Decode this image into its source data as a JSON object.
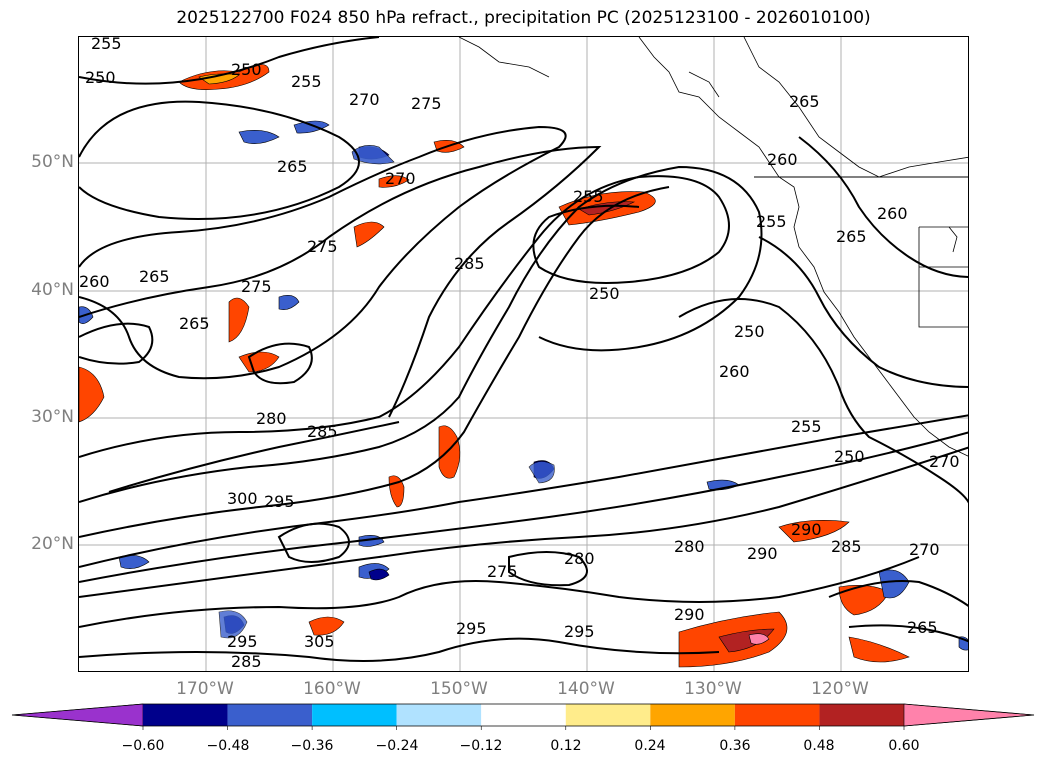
{
  "title": "2025122700 F024 850 hPa refract., precipitation PC (2025123100 - 2026010100)",
  "latitude_labels": [
    "50°N",
    "40°N",
    "30°N",
    "20°N"
  ],
  "longitude_labels": [
    "170°W",
    "160°W",
    "150°W",
    "140°W",
    "130°W",
    "120°W"
  ],
  "contour_labels": [
    {
      "text": "255"
    },
    {
      "text": "250"
    },
    {
      "text": "250"
    },
    {
      "text": "255"
    },
    {
      "text": "270"
    },
    {
      "text": "275"
    },
    {
      "text": "275"
    },
    {
      "text": "265"
    },
    {
      "text": "270"
    },
    {
      "text": "265"
    },
    {
      "text": "260"
    },
    {
      "text": "275"
    },
    {
      "text": "285"
    },
    {
      "text": "255"
    },
    {
      "text": "250"
    },
    {
      "text": "265"
    },
    {
      "text": "260"
    },
    {
      "text": "255"
    },
    {
      "text": "265"
    },
    {
      "text": "260"
    },
    {
      "text": "265"
    },
    {
      "text": "250"
    },
    {
      "text": "260"
    },
    {
      "text": "280"
    },
    {
      "text": "285"
    },
    {
      "text": "295"
    },
    {
      "text": "300"
    },
    {
      "text": "280"
    },
    {
      "text": "275"
    },
    {
      "text": "295"
    },
    {
      "text": "290"
    },
    {
      "text": "295"
    },
    {
      "text": "305"
    },
    {
      "text": "295"
    },
    {
      "text": "285"
    },
    {
      "text": "280"
    },
    {
      "text": "290"
    },
    {
      "text": "290"
    },
    {
      "text": "285"
    },
    {
      "text": "270"
    },
    {
      "text": "250"
    },
    {
      "text": "255"
    },
    {
      "text": "265"
    },
    {
      "text": "270"
    }
  ],
  "colorbar": {
    "colors": [
      "#9a32cd",
      "#00008b",
      "#3a5fcd",
      "#00bfff",
      "#b0e2ff",
      "#ffffff",
      "#ffec8b",
      "#ffa500",
      "#ff4500",
      "#b22222",
      "#ff82ab"
    ],
    "tick_labels": [
      "−0.60",
      "−0.48",
      "−0.36",
      "−0.24",
      "−0.12",
      "0.12",
      "0.24",
      "0.36",
      "0.48",
      "0.60"
    ]
  }
}
